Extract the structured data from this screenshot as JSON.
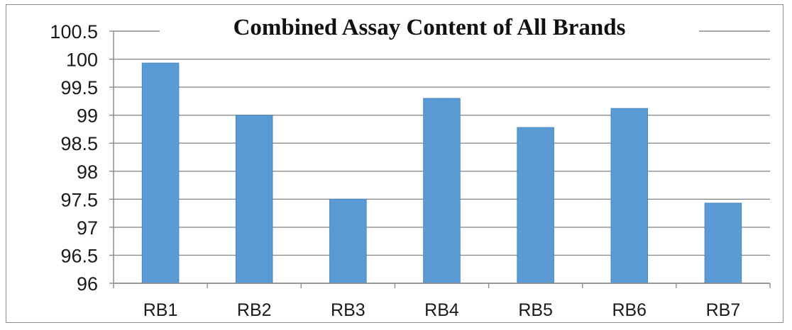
{
  "chart_data": {
    "type": "bar",
    "title": "Combined Assay Content of All Brands",
    "xlabel": "",
    "ylabel": "",
    "categories": [
      "RB1",
      "RB2",
      "RB3",
      "RB4",
      "RB5",
      "RB6",
      "RB7"
    ],
    "values": [
      99.93,
      99.0,
      97.5,
      99.3,
      98.78,
      99.12,
      97.43
    ],
    "ylim": [
      96,
      100.5
    ],
    "yticks": [
      "96",
      "96.5",
      "97",
      "97.5",
      "98",
      "98.5",
      "99",
      "99.5",
      "100",
      "100.5"
    ],
    "grid": true,
    "legend": "none",
    "colors": {
      "bar": "#5b9bd5",
      "bar_stroke": "#4a86bf",
      "grid": "#8c8c8c",
      "axis": "#8c8c8c"
    }
  }
}
